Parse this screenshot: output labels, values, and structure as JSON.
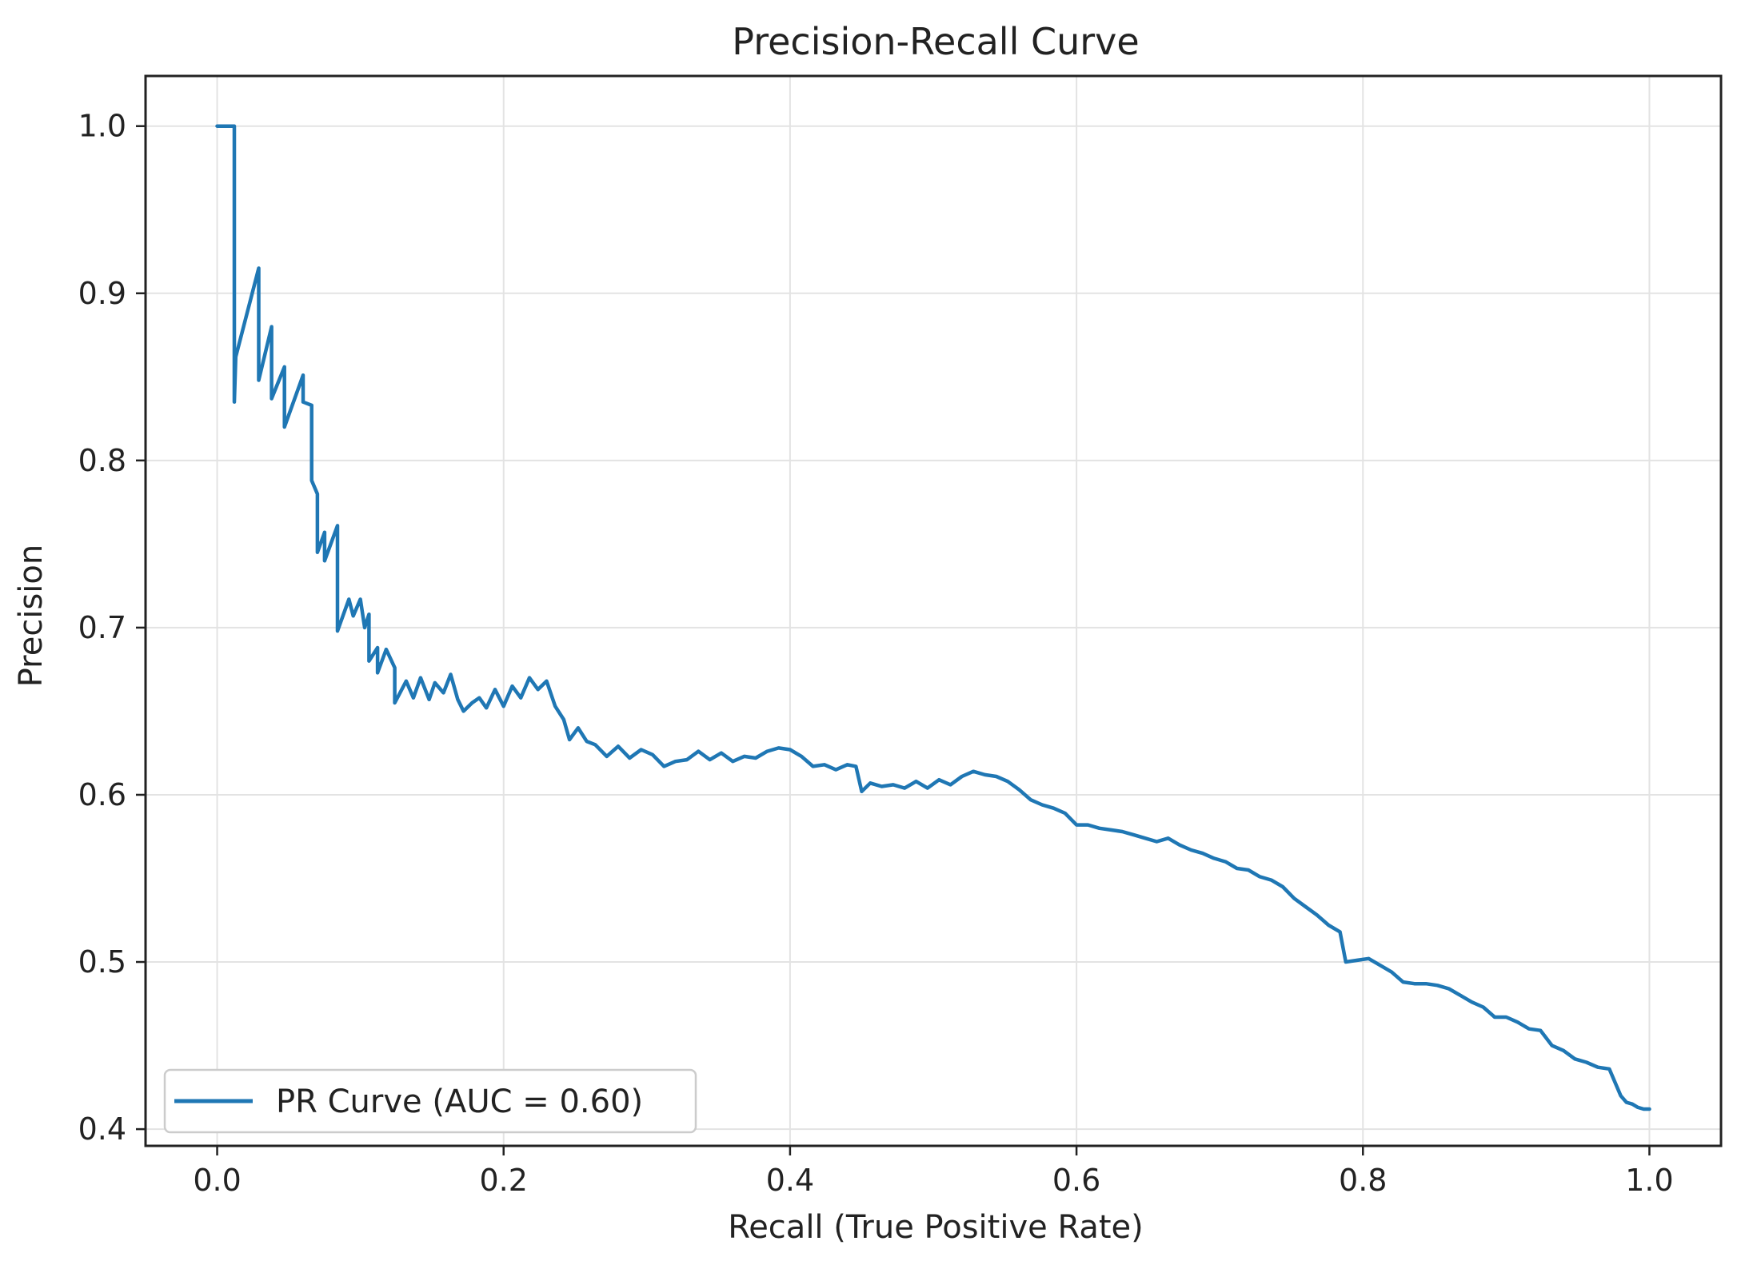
{
  "chart_data": {
    "type": "line",
    "title": "Precision-Recall Curve",
    "xlabel": "Recall (True Positive Rate)",
    "ylabel": "Precision",
    "xlim": [
      -0.05,
      1.05
    ],
    "ylim": [
      0.39,
      1.03
    ],
    "xticks": [
      0.0,
      0.2,
      0.4,
      0.6,
      0.8,
      1.0
    ],
    "xtick_labels": [
      "0.0",
      "0.2",
      "0.4",
      "0.6",
      "0.8",
      "1.0"
    ],
    "yticks": [
      0.4,
      0.5,
      0.6,
      0.7,
      0.8,
      0.9,
      1.0
    ],
    "ytick_labels": [
      "0.4",
      "0.5",
      "0.6",
      "0.7",
      "0.8",
      "0.9",
      "1.0"
    ],
    "grid": true,
    "legend_position": "lower-left",
    "series": [
      {
        "name": "PR Curve (AUC = 0.60)",
        "color": "#1f77b4",
        "x": [
          0.0,
          0.012,
          0.012,
          0.013,
          0.029,
          0.029,
          0.038,
          0.038,
          0.047,
          0.047,
          0.06,
          0.06,
          0.066,
          0.066,
          0.07,
          0.07,
          0.075,
          0.075,
          0.084,
          0.084,
          0.092,
          0.095,
          0.1,
          0.103,
          0.106,
          0.106,
          0.112,
          0.112,
          0.118,
          0.124,
          0.124,
          0.132,
          0.137,
          0.142,
          0.148,
          0.152,
          0.158,
          0.163,
          0.168,
          0.172,
          0.178,
          0.183,
          0.188,
          0.194,
          0.2,
          0.206,
          0.212,
          0.218,
          0.224,
          0.23,
          0.236,
          0.242,
          0.246,
          0.252,
          0.258,
          0.264,
          0.272,
          0.28,
          0.288,
          0.296,
          0.304,
          0.312,
          0.32,
          0.328,
          0.336,
          0.344,
          0.352,
          0.36,
          0.368,
          0.376,
          0.384,
          0.392,
          0.4,
          0.408,
          0.416,
          0.424,
          0.432,
          0.44,
          0.446,
          0.45,
          0.456,
          0.464,
          0.472,
          0.48,
          0.488,
          0.496,
          0.504,
          0.512,
          0.52,
          0.528,
          0.536,
          0.544,
          0.552,
          0.56,
          0.568,
          0.576,
          0.584,
          0.592,
          0.6,
          0.608,
          0.616,
          0.624,
          0.632,
          0.64,
          0.648,
          0.656,
          0.664,
          0.672,
          0.68,
          0.688,
          0.696,
          0.704,
          0.712,
          0.72,
          0.728,
          0.736,
          0.744,
          0.752,
          0.76,
          0.768,
          0.776,
          0.784,
          0.788,
          0.796,
          0.804,
          0.812,
          0.82,
          0.828,
          0.836,
          0.844,
          0.852,
          0.86,
          0.868,
          0.876,
          0.884,
          0.892,
          0.9,
          0.908,
          0.916,
          0.924,
          0.932,
          0.94,
          0.948,
          0.956,
          0.964,
          0.972,
          0.98,
          0.984,
          0.988,
          0.992,
          0.996,
          1.0
        ],
        "y": [
          1.0,
          1.0,
          0.835,
          0.862,
          0.915,
          0.848,
          0.88,
          0.837,
          0.856,
          0.82,
          0.851,
          0.835,
          0.833,
          0.788,
          0.78,
          0.745,
          0.757,
          0.74,
          0.761,
          0.698,
          0.717,
          0.707,
          0.717,
          0.7,
          0.708,
          0.68,
          0.688,
          0.673,
          0.687,
          0.676,
          0.655,
          0.668,
          0.658,
          0.67,
          0.657,
          0.667,
          0.661,
          0.672,
          0.657,
          0.65,
          0.655,
          0.658,
          0.652,
          0.663,
          0.653,
          0.665,
          0.658,
          0.67,
          0.663,
          0.668,
          0.653,
          0.645,
          0.633,
          0.64,
          0.632,
          0.63,
          0.623,
          0.629,
          0.622,
          0.627,
          0.624,
          0.617,
          0.62,
          0.621,
          0.626,
          0.621,
          0.625,
          0.62,
          0.623,
          0.622,
          0.626,
          0.628,
          0.627,
          0.623,
          0.617,
          0.618,
          0.615,
          0.618,
          0.617,
          0.602,
          0.607,
          0.605,
          0.606,
          0.604,
          0.608,
          0.604,
          0.609,
          0.606,
          0.611,
          0.614,
          0.612,
          0.611,
          0.608,
          0.603,
          0.597,
          0.594,
          0.592,
          0.589,
          0.582,
          0.582,
          0.58,
          0.579,
          0.578,
          0.576,
          0.574,
          0.572,
          0.574,
          0.57,
          0.567,
          0.565,
          0.562,
          0.56,
          0.556,
          0.555,
          0.551,
          0.549,
          0.545,
          0.538,
          0.533,
          0.528,
          0.522,
          0.518,
          0.5,
          0.501,
          0.502,
          0.498,
          0.494,
          0.488,
          0.487,
          0.487,
          0.486,
          0.484,
          0.48,
          0.476,
          0.473,
          0.467,
          0.467,
          0.464,
          0.46,
          0.459,
          0.45,
          0.447,
          0.442,
          0.44,
          0.437,
          0.436,
          0.42,
          0.416,
          0.415,
          0.413,
          0.412,
          0.412
        ]
      }
    ]
  }
}
